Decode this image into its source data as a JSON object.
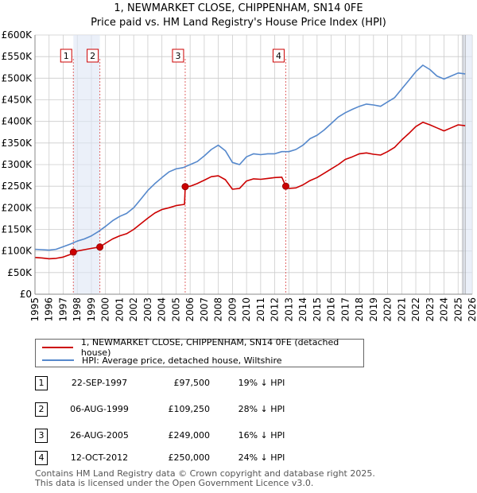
{
  "chart_data": {
    "type": "line",
    "title": "1, NEWMARKET CLOSE, CHIPPENHAM, SN14 0FE",
    "subtitle": "Price paid vs. HM Land Registry's House Price Index (HPI)",
    "ylim": [
      0,
      600000
    ],
    "xlim": [
      1995,
      2026
    ],
    "y_ticks": [
      {
        "value": 0,
        "label": "£0"
      },
      {
        "value": 50000,
        "label": "£50K"
      },
      {
        "value": 100000,
        "label": "£100K"
      },
      {
        "value": 150000,
        "label": "£150K"
      },
      {
        "value": 200000,
        "label": "£200K"
      },
      {
        "value": 250000,
        "label": "£250K"
      },
      {
        "value": 300000,
        "label": "£300K"
      },
      {
        "value": 350000,
        "label": "£350K"
      },
      {
        "value": 400000,
        "label": "£400K"
      },
      {
        "value": 450000,
        "label": "£450K"
      },
      {
        "value": 500000,
        "label": "£500K"
      },
      {
        "value": 550000,
        "label": "£550K"
      },
      {
        "value": 600000,
        "label": "£600K"
      }
    ],
    "x_ticks": [
      "1995",
      "1996",
      "1997",
      "1998",
      "1999",
      "2000",
      "2001",
      "2002",
      "2003",
      "2004",
      "2005",
      "2006",
      "2007",
      "2008",
      "2009",
      "2010",
      "2011",
      "2012",
      "2013",
      "2014",
      "2015",
      "2016",
      "2017",
      "2018",
      "2019",
      "2020",
      "2021",
      "2022",
      "2023",
      "2024",
      "2025",
      "2026"
    ],
    "grid": true,
    "shaded_regions": [
      {
        "from": 1997.72,
        "to": 1999.6
      },
      {
        "from": 2025.3,
        "to": 2026
      }
    ],
    "sale_markers": [
      {
        "label": "1",
        "x": 1997.72,
        "value": 97500
      },
      {
        "label": "2",
        "x": 1999.6,
        "value": 109250
      },
      {
        "label": "3",
        "x": 2005.65,
        "value": 249000
      },
      {
        "label": "4",
        "x": 2012.78,
        "value": 250000
      }
    ],
    "series": [
      {
        "name": "1, NEWMARKET CLOSE, CHIPPENHAM, SN14 0FE (detached house)",
        "color": "#cc0000",
        "points": [
          [
            1995.0,
            85000
          ],
          [
            1995.5,
            84000
          ],
          [
            1996.0,
            82000
          ],
          [
            1996.5,
            83000
          ],
          [
            1997.0,
            86000
          ],
          [
            1997.5,
            92000
          ],
          [
            1997.72,
            97500
          ],
          [
            1998.0,
            100000
          ],
          [
            1998.5,
            103000
          ],
          [
            1999.0,
            106000
          ],
          [
            1999.6,
            109250
          ],
          [
            2000.0,
            118000
          ],
          [
            2000.5,
            128000
          ],
          [
            2001.0,
            135000
          ],
          [
            2001.5,
            140000
          ],
          [
            2002.0,
            150000
          ],
          [
            2002.5,
            163000
          ],
          [
            2003.0,
            176000
          ],
          [
            2003.5,
            188000
          ],
          [
            2004.0,
            196000
          ],
          [
            2004.5,
            200000
          ],
          [
            2005.0,
            205000
          ],
          [
            2005.6,
            208000
          ],
          [
            2005.65,
            249000
          ],
          [
            2006.0,
            250000
          ],
          [
            2006.5,
            256000
          ],
          [
            2007.0,
            264000
          ],
          [
            2007.5,
            272000
          ],
          [
            2008.0,
            274000
          ],
          [
            2008.5,
            265000
          ],
          [
            2009.0,
            243000
          ],
          [
            2009.5,
            245000
          ],
          [
            2010.0,
            262000
          ],
          [
            2010.5,
            267000
          ],
          [
            2011.0,
            266000
          ],
          [
            2011.5,
            268000
          ],
          [
            2012.0,
            270000
          ],
          [
            2012.5,
            271000
          ],
          [
            2012.78,
            250000
          ],
          [
            2013.0,
            245000
          ],
          [
            2013.5,
            246000
          ],
          [
            2014.0,
            253000
          ],
          [
            2014.5,
            263000
          ],
          [
            2015.0,
            270000
          ],
          [
            2015.5,
            280000
          ],
          [
            2016.0,
            290000
          ],
          [
            2016.5,
            300000
          ],
          [
            2017.0,
            312000
          ],
          [
            2017.5,
            318000
          ],
          [
            2018.0,
            325000
          ],
          [
            2018.5,
            327000
          ],
          [
            2019.0,
            324000
          ],
          [
            2019.5,
            322000
          ],
          [
            2020.0,
            330000
          ],
          [
            2020.5,
            340000
          ],
          [
            2021.0,
            357000
          ],
          [
            2021.5,
            372000
          ],
          [
            2022.0,
            388000
          ],
          [
            2022.5,
            398000
          ],
          [
            2023.0,
            392000
          ],
          [
            2023.5,
            385000
          ],
          [
            2024.0,
            378000
          ],
          [
            2024.5,
            385000
          ],
          [
            2025.0,
            392000
          ],
          [
            2025.5,
            390000
          ]
        ]
      },
      {
        "name": "HPI: Average price, detached house, Wiltshire",
        "color": "#5588cc",
        "points": [
          [
            1995.0,
            104000
          ],
          [
            1995.5,
            103000
          ],
          [
            1996.0,
            102000
          ],
          [
            1996.5,
            104000
          ],
          [
            1997.0,
            110000
          ],
          [
            1997.5,
            116000
          ],
          [
            1998.0,
            123000
          ],
          [
            1998.5,
            128000
          ],
          [
            1999.0,
            135000
          ],
          [
            1999.5,
            145000
          ],
          [
            2000.0,
            157000
          ],
          [
            2000.5,
            170000
          ],
          [
            2001.0,
            180000
          ],
          [
            2001.5,
            187000
          ],
          [
            2002.0,
            200000
          ],
          [
            2002.5,
            220000
          ],
          [
            2003.0,
            240000
          ],
          [
            2003.5,
            256000
          ],
          [
            2004.0,
            270000
          ],
          [
            2004.5,
            283000
          ],
          [
            2005.0,
            290000
          ],
          [
            2005.5,
            293000
          ],
          [
            2006.0,
            300000
          ],
          [
            2006.5,
            307000
          ],
          [
            2007.0,
            320000
          ],
          [
            2007.5,
            335000
          ],
          [
            2008.0,
            345000
          ],
          [
            2008.5,
            332000
          ],
          [
            2009.0,
            305000
          ],
          [
            2009.5,
            300000
          ],
          [
            2010.0,
            318000
          ],
          [
            2010.5,
            325000
          ],
          [
            2011.0,
            323000
          ],
          [
            2011.5,
            325000
          ],
          [
            2012.0,
            325000
          ],
          [
            2012.5,
            330000
          ],
          [
            2013.0,
            330000
          ],
          [
            2013.5,
            335000
          ],
          [
            2014.0,
            345000
          ],
          [
            2014.5,
            360000
          ],
          [
            2015.0,
            368000
          ],
          [
            2015.5,
            380000
          ],
          [
            2016.0,
            395000
          ],
          [
            2016.5,
            410000
          ],
          [
            2017.0,
            420000
          ],
          [
            2017.5,
            428000
          ],
          [
            2018.0,
            435000
          ],
          [
            2018.5,
            440000
          ],
          [
            2019.0,
            438000
          ],
          [
            2019.5,
            435000
          ],
          [
            2020.0,
            445000
          ],
          [
            2020.5,
            455000
          ],
          [
            2021.0,
            475000
          ],
          [
            2021.5,
            495000
          ],
          [
            2022.0,
            515000
          ],
          [
            2022.5,
            530000
          ],
          [
            2023.0,
            520000
          ],
          [
            2023.5,
            505000
          ],
          [
            2024.0,
            498000
          ],
          [
            2024.5,
            505000
          ],
          [
            2025.0,
            512000
          ],
          [
            2025.5,
            510000
          ]
        ]
      }
    ]
  },
  "legend": {
    "property_label": "1, NEWMARKET CLOSE, CHIPPENHAM, SN14 0FE (detached house)",
    "hpi_label": "HPI: Average price, detached house, Wiltshire"
  },
  "sales": [
    {
      "num": "1",
      "date": "22-SEP-1997",
      "price": "£97,500",
      "hpi": "19% ↓ HPI"
    },
    {
      "num": "2",
      "date": "06-AUG-1999",
      "price": "£109,250",
      "hpi": "28% ↓ HPI"
    },
    {
      "num": "3",
      "date": "26-AUG-2005",
      "price": "£249,000",
      "hpi": "16% ↓ HPI"
    },
    {
      "num": "4",
      "date": "12-OCT-2012",
      "price": "£250,000",
      "hpi": "24% ↓ HPI"
    }
  ],
  "footer": {
    "line1": "Contains HM Land Registry data © Crown copyright and database right 2025.",
    "line2": "This data is licensed under the Open Government Licence v3.0."
  }
}
